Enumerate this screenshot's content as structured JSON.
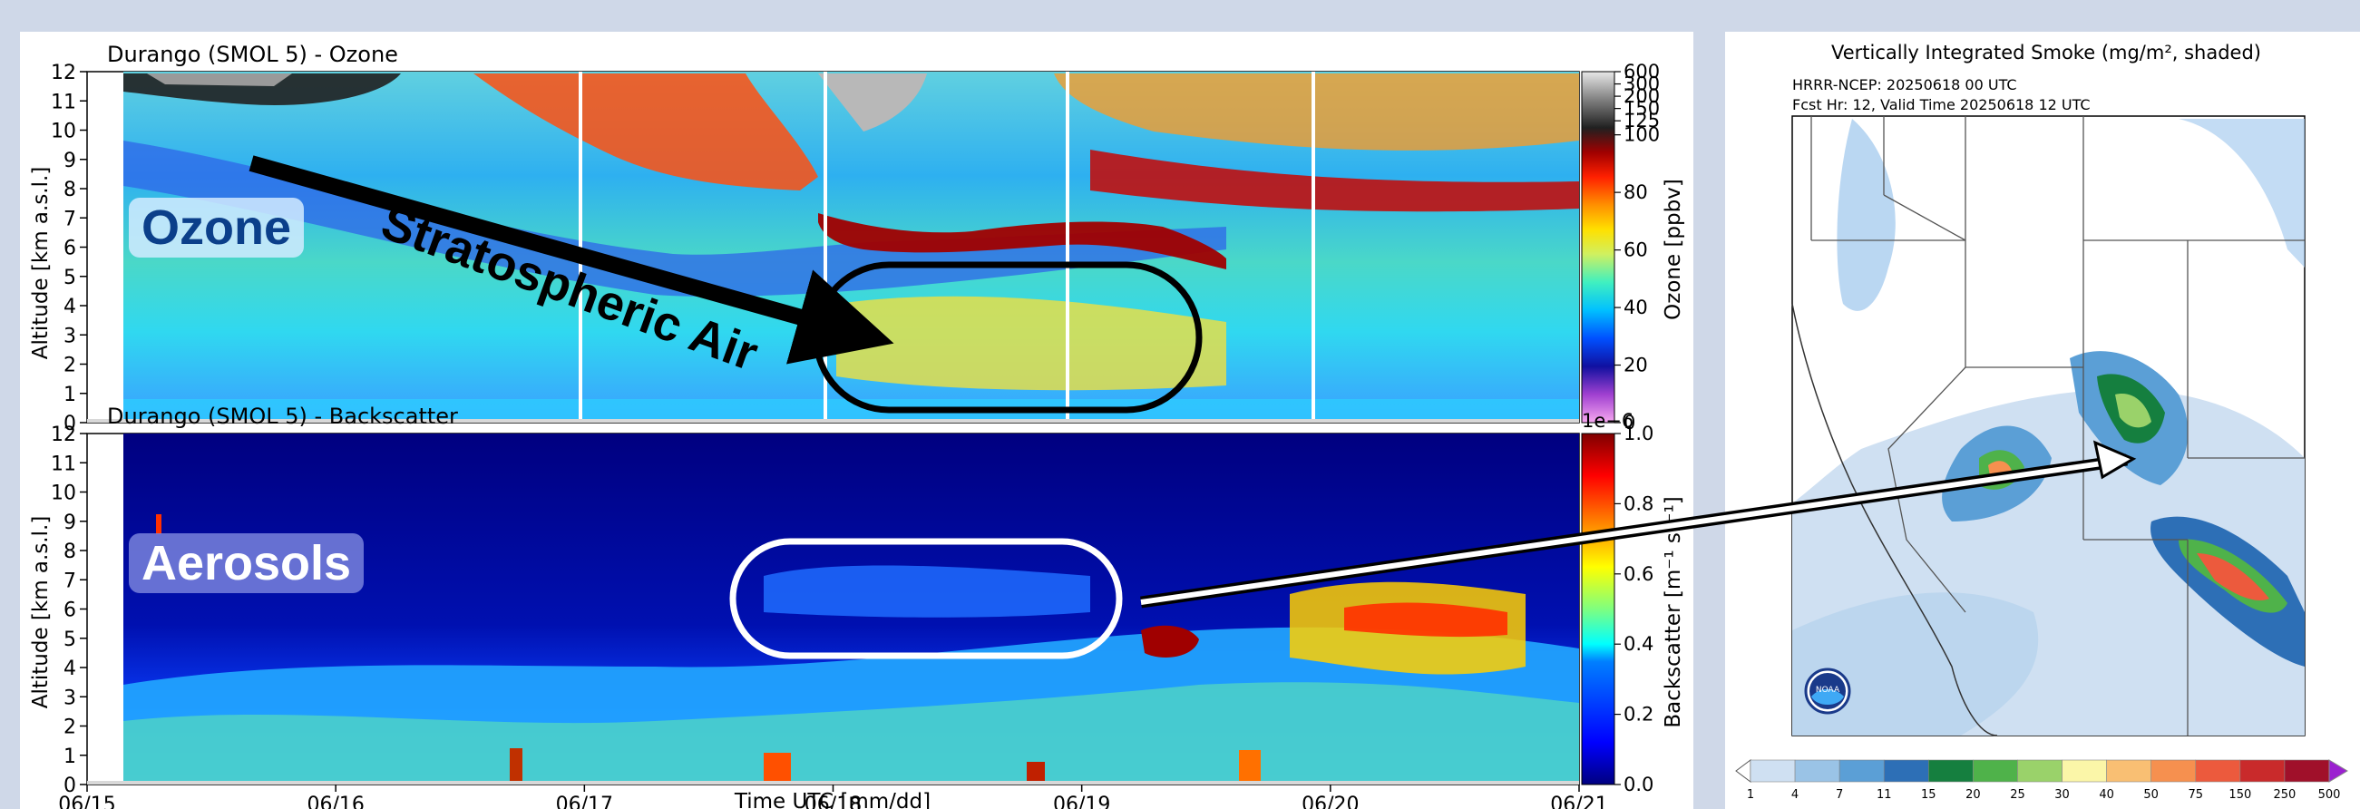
{
  "chart_data": [
    {
      "type": "heatmap",
      "title": "Durango (SMOL 5) - Ozone",
      "xlabel": "Time UTC [mm/dd]",
      "ylabel": "Altitude [km a.s.l.]",
      "x_ticks": [
        "06/15",
        "06/16",
        "06/17",
        "06/18",
        "06/19",
        "06/20",
        "06/21"
      ],
      "y_ticks": [
        0,
        1,
        2,
        3,
        4,
        5,
        6,
        7,
        8,
        9,
        10,
        11,
        12
      ],
      "ylim": [
        0,
        12
      ],
      "colorbar": {
        "label": "Ozone [ppbv]",
        "ticks": [
          "0",
          "20",
          "40",
          "60",
          "80",
          "100",
          "125",
          "150",
          "200",
          "300",
          "600"
        ]
      },
      "annotations": {
        "badge": "Ozone",
        "arrow_text": "Stratospheric Air"
      }
    },
    {
      "type": "heatmap",
      "title": "Durango (SMOL 5) - Backscatter",
      "xlabel": "Time UTC [mm/dd]",
      "ylabel": "Altitude [km a.s.l.]",
      "x_ticks": [
        "06/15",
        "06/16",
        "06/17",
        "06/18",
        "06/19",
        "06/20",
        "06/21"
      ],
      "y_ticks": [
        0,
        1,
        2,
        3,
        4,
        5,
        6,
        7,
        8,
        9,
        10,
        11,
        12
      ],
      "ylim": [
        0,
        12
      ],
      "colorbar": {
        "label": "Backscatter [m⁻¹ sr⁻¹]",
        "offset": "1e−6",
        "ticks": [
          "0.0",
          "0.2",
          "0.4",
          "0.6",
          "0.8",
          "1.0"
        ]
      },
      "annotations": {
        "badge": "Aerosols"
      }
    },
    {
      "type": "heatmap",
      "title": "Vertically Integrated Smoke (mg/m², shaded)",
      "subtitle_lines": [
        "HRRR-NCEP: 20250618 00 UTC",
        "Fcst Hr: 12, Valid Time 20250618 12 UTC"
      ],
      "colorbar": {
        "ticks": [
          "1",
          "4",
          "7",
          "11",
          "15",
          "20",
          "25",
          "30",
          "40",
          "50",
          "75",
          "150",
          "250",
          "500"
        ]
      },
      "logo": "NOAA"
    }
  ],
  "colors": {
    "ozone_scale": [
      "#f7a8f0",
      "#a040d0",
      "#1010a0",
      "#0050ff",
      "#00c0ff",
      "#40f0c0",
      "#d0f060",
      "#ffe000",
      "#ff9000",
      "#ff2000",
      "#a00000",
      "#202020",
      "#808080",
      "#e8e8e8"
    ],
    "backscatter_scale": [
      "#00007f",
      "#0000ff",
      "#007fff",
      "#00ffff",
      "#7fff7f",
      "#ffff00",
      "#ff7f00",
      "#ff0000",
      "#7f0000"
    ],
    "smoke_scale": [
      "#cfe0f2",
      "#9ac3e6",
      "#5b9fd6",
      "#2d6fb6",
      "#157f3f",
      "#4fb24a",
      "#9ad26a",
      "#fbf6a8",
      "#f9bf73",
      "#f6904f",
      "#ec5a3d",
      "#c92a2b",
      "#a0102a",
      "#9b20d0"
    ]
  }
}
